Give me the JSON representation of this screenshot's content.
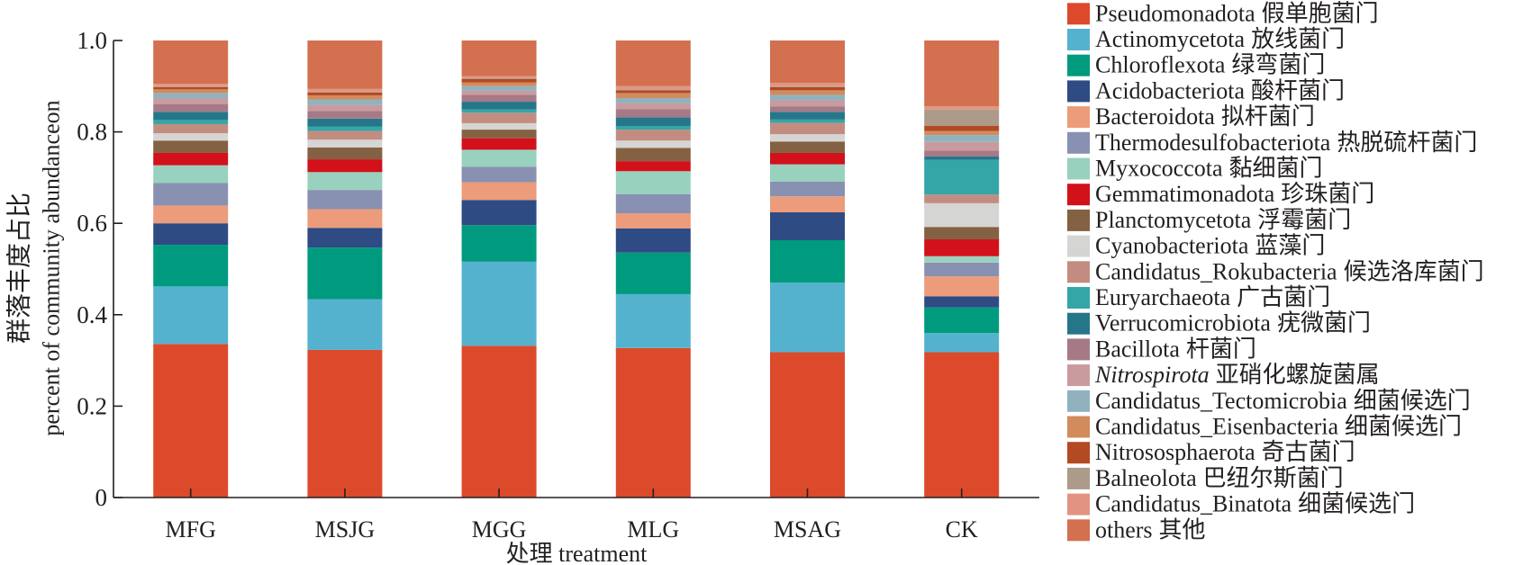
{
  "chart_data": {
    "type": "bar",
    "stacked": true,
    "title": "",
    "xlabel": "处理 treatment",
    "ylabel": [
      "群落丰度占比",
      "percent of community abundanceon"
    ],
    "categories": [
      "MFG",
      "MSJG",
      "MGG",
      "MLG",
      "MSAG",
      "CK"
    ],
    "ylim": [
      0,
      1.0
    ],
    "yticks": [
      0,
      0.2,
      0.4,
      0.6,
      0.8,
      1.0
    ],
    "ytick_labels": [
      "0",
      "0.2",
      "0.4",
      "0.6",
      "0.8",
      "1.0"
    ],
    "grid": false,
    "legend_position": "right",
    "series": [
      {
        "name": "Pseudomonadota",
        "name_cn": "假单胞菌门",
        "color": "#dc4a2b",
        "values": [
          0.336,
          0.323,
          0.332,
          0.327,
          0.318,
          0.318
        ]
      },
      {
        "name": "Actinomycetota",
        "name_cn": "放线菌门",
        "color": "#55b2ce",
        "values": [
          0.126,
          0.111,
          0.184,
          0.118,
          0.152,
          0.042
        ]
      },
      {
        "name": "Chloroflexota",
        "name_cn": "绿弯菌门",
        "color": "#009a7e",
        "values": [
          0.091,
          0.113,
          0.08,
          0.091,
          0.093,
          0.056
        ]
      },
      {
        "name": "Acidobacteriota",
        "name_cn": "酸杆菌门",
        "color": "#2e4b83",
        "values": [
          0.047,
          0.043,
          0.055,
          0.053,
          0.061,
          0.024
        ]
      },
      {
        "name": "Bacteroidota",
        "name_cn": "拟杆菌门",
        "color": "#ec9b7b",
        "values": [
          0.039,
          0.041,
          0.039,
          0.033,
          0.035,
          0.044
        ]
      },
      {
        "name": "Thermodesulfobacteriota",
        "name_cn": "热脱硫杆菌门",
        "color": "#8891b1",
        "values": [
          0.049,
          0.042,
          0.034,
          0.042,
          0.032,
          0.03
        ]
      },
      {
        "name": "Myxococcota",
        "name_cn": "黏细菌门",
        "color": "#99d1bf",
        "values": [
          0.039,
          0.039,
          0.037,
          0.05,
          0.038,
          0.014
        ]
      },
      {
        "name": "Gemmatimonadota",
        "name_cn": "珍珠菌门",
        "color": "#d2111b",
        "values": [
          0.027,
          0.028,
          0.025,
          0.022,
          0.025,
          0.037
        ]
      },
      {
        "name": "Planctomycetota",
        "name_cn": "浮霉菌门",
        "color": "#846143",
        "values": [
          0.027,
          0.026,
          0.019,
          0.029,
          0.025,
          0.027
        ]
      },
      {
        "name": "Cyanobacteriota",
        "name_cn": "蓝藻门",
        "color": "#d5d5d3",
        "values": [
          0.016,
          0.017,
          0.014,
          0.016,
          0.016,
          0.052
        ]
      },
      {
        "name": "Candidatus_Rokubacteria",
        "name_cn": "候选洛库菌门",
        "color": "#c28d80",
        "values": [
          0.02,
          0.019,
          0.023,
          0.024,
          0.025,
          0.019
        ]
      },
      {
        "name": "Euryarchaeota",
        "name_cn": "广古菌门",
        "color": "#34a6a7",
        "values": [
          0.009,
          0.01,
          0.007,
          0.008,
          0.007,
          0.076
        ]
      },
      {
        "name": "Verrucomicrobiota",
        "name_cn": "疣微菌门",
        "color": "#26768a",
        "values": [
          0.018,
          0.017,
          0.017,
          0.019,
          0.017,
          0.007
        ]
      },
      {
        "name": "Bacillota",
        "name_cn": "杆菌门",
        "color": "#a57a86",
        "values": [
          0.017,
          0.017,
          0.015,
          0.018,
          0.012,
          0.013
        ]
      },
      {
        "name": "Nitrospirota",
        "name_cn": "亚硝化螺旋菌属",
        "color": "#c99a9e",
        "italic": true,
        "values": [
          0.012,
          0.013,
          0.009,
          0.013,
          0.013,
          0.019
        ]
      },
      {
        "name": "Candidatus_Tectomicrobia",
        "name_cn": "细菌候选门",
        "color": "#90b2bf",
        "values": [
          0.012,
          0.012,
          0.01,
          0.011,
          0.012,
          0.015
        ]
      },
      {
        "name": "Candidatus_Eisenbacteria",
        "name_cn": "细菌候选门",
        "color": "#d28b5c",
        "values": [
          0.008,
          0.009,
          0.008,
          0.011,
          0.01,
          0.009
        ]
      },
      {
        "name": "Nitrososphaerota",
        "name_cn": "奇古菌门",
        "color": "#b34a22",
        "values": [
          0.005,
          0.006,
          0.008,
          0.006,
          0.007,
          0.011
        ]
      },
      {
        "name": "Balneolota",
        "name_cn": "巴纽尔斯菌门",
        "color": "#ab9b88",
        "values": [
          0.002,
          0.002,
          0.002,
          0.002,
          0.002,
          0.036
        ]
      },
      {
        "name": "Candidatus_Binatota",
        "name_cn": "细菌候选门",
        "color": "#e39381",
        "values": [
          0.005,
          0.006,
          0.004,
          0.007,
          0.007,
          0.007
        ]
      },
      {
        "name": "others",
        "name_cn": "其他",
        "color": "#d3704f",
        "values": [
          0.095,
          0.106,
          0.078,
          0.1,
          0.093,
          0.144
        ]
      }
    ]
  }
}
